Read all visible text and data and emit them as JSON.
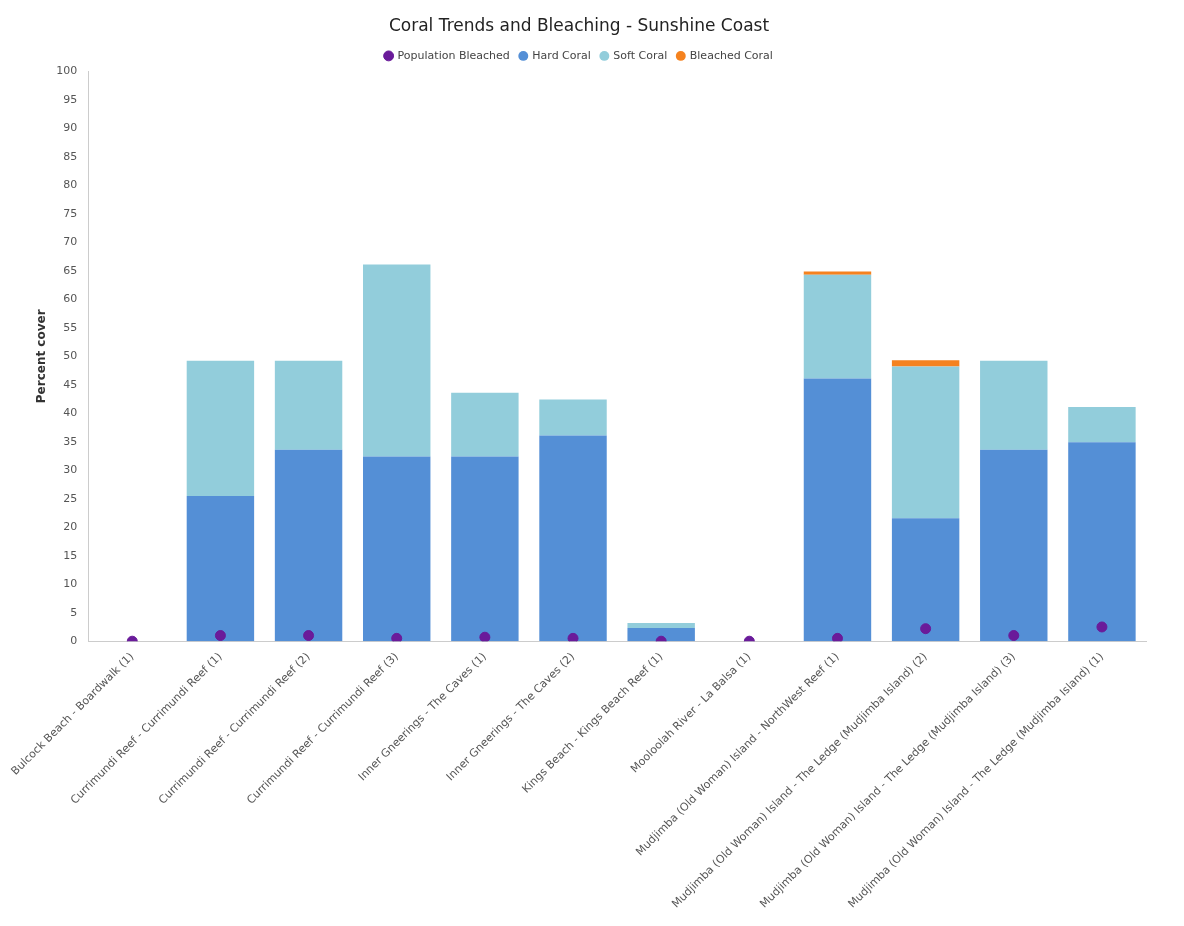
{
  "chart_data": {
    "type": "bar",
    "title": "Coral Trends and Bleaching - Sunshine Coast",
    "ylabel": "Percent cover",
    "stacked": true,
    "legend": "top",
    "grid": false,
    "categories": [
      "Bulcock Beach - Boardwalk (1)",
      "Currimundi Reef - Currimundi Reef (1)",
      "Currimundi Reef - Currimundi Reef (2)",
      "Currimundi Reef - Currimundi Reef (3)",
      "Inner Gneerings - The Caves (1)",
      "Inner Gneerings - The Caves (2)",
      "Kings Beach - Kings Beach Reef (1)",
      "Mooloolah River - La Balsa (1)",
      "Mudjimba (Old Woman) Island - NorthWest Reef (1)",
      "Mudjimba (Old Woman) Island - The Ledge (Mudjimba Island) (2)",
      "Mudjimba (Old Woman) Island - The Ledge (Mudjimba Island) (3)",
      "Mudjimba (Old Woman) Island - The Ledge (Mudjimba Island) (1)"
    ],
    "ylim": [
      0,
      100
    ],
    "yticks": [
      0,
      5,
      10,
      15,
      20,
      25,
      30,
      35,
      40,
      45,
      50,
      55,
      60,
      65,
      70,
      75,
      80,
      85,
      90,
      95,
      100
    ],
    "series": [
      {
        "name": "Hard Coral",
        "color": "#548fd6",
        "values": [
          0,
          25.5,
          33.6,
          32.4,
          32.4,
          36.1,
          2.3,
          0,
          46.1,
          21.6,
          33.6,
          34.9
        ]
      },
      {
        "name": "Soft Coral",
        "color": "#92cddb",
        "values": [
          0,
          23.7,
          15.6,
          33.7,
          11.2,
          6.3,
          0.9,
          0,
          18.2,
          26.6,
          15.6,
          6.2
        ]
      },
      {
        "name": "Bleached Coral",
        "color": "#f5821f",
        "values": [
          0,
          0,
          0,
          0,
          0,
          0,
          0,
          0,
          0.6,
          1.1,
          0,
          0
        ]
      },
      {
        "name": "Population Bleached",
        "type": "scatter",
        "marker": "circle",
        "color": "#6a1b9a",
        "x": [
          "Bulcock Beach - Boardwalk (1)",
          "Currimundi Reef - Currimundi Reef (1)",
          "Currimundi Reef - Currimundi Reef (2)",
          "Currimundi Reef - Currimundi Reef (3)",
          "Inner Gneerings - The Caves (1)",
          "Inner Gneerings - The Caves (2)",
          "Kings Beach - Kings Beach Reef (1)",
          "Mooloolah River - La Balsa (1)",
          "Mudjimba (Old Woman) Island - NorthWest Reef (1)",
          "Mudjimba (Old Woman) Island - The Ledge (Mudjimba Island) (2)",
          "Mudjimba (Old Woman) Island - The Ledge (Mudjimba Island) (3)",
          "Mudjimba (Old Woman) Island - The Ledge (Mudjimba Island) (1)"
        ],
        "values": [
          0,
          1,
          1,
          0.5,
          0.7,
          0.5,
          0,
          0,
          0.5,
          2.2,
          1,
          2.5
        ]
      }
    ]
  }
}
